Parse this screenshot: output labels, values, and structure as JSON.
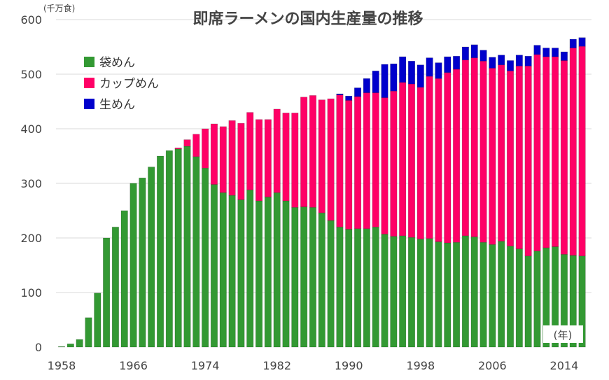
{
  "chart_data": {
    "type": "bar",
    "stacked": true,
    "title": "即席ラーメンの国内生産量の推移",
    "ylabel": "(千万食)",
    "xlabel": "(年)",
    "ylim": [
      0,
      600
    ],
    "yticks": [
      0,
      100,
      200,
      300,
      400,
      500,
      600
    ],
    "xticks": [
      1958,
      1966,
      1974,
      1982,
      1990,
      1998,
      2006,
      2014
    ],
    "grid": true,
    "legend_position": "top-left",
    "x_start": 1958,
    "x_end": 2016,
    "series": [
      {
        "name": "袋めん",
        "color": "#339933",
        "values": [
          1,
          6,
          14,
          54,
          99,
          200,
          220,
          250,
          300,
          310,
          330,
          350,
          360,
          363,
          368,
          349,
          328,
          298,
          283,
          278,
          270,
          288,
          268,
          275,
          283,
          268,
          256,
          257,
          256,
          246,
          232,
          220,
          216,
          217,
          217,
          220,
          207,
          203,
          204,
          201,
          198,
          199,
          193,
          191,
          192,
          204,
          202,
          192,
          188,
          194,
          185,
          180,
          167,
          176,
          182,
          184,
          170,
          168,
          167
        ]
      },
      {
        "name": "カップめん",
        "color": "#ff0066",
        "values": [
          0,
          0,
          0,
          0,
          0,
          0,
          0,
          0,
          0,
          0,
          0,
          0,
          0,
          2,
          12,
          41,
          72,
          111,
          121,
          137,
          140,
          142,
          149,
          142,
          153,
          161,
          173,
          201,
          205,
          207,
          223,
          242,
          236,
          242,
          249,
          246,
          250,
          266,
          281,
          281,
          278,
          297,
          299,
          312,
          317,
          322,
          328,
          332,
          323,
          323,
          321,
          335,
          348,
          360,
          350,
          348,
          355,
          380,
          384
        ]
      },
      {
        "name": "生めん",
        "color": "#0000cc",
        "values": [
          0,
          0,
          0,
          0,
          0,
          0,
          0,
          0,
          0,
          0,
          0,
          0,
          0,
          0,
          0,
          0,
          0,
          0,
          0,
          0,
          0,
          0,
          0,
          0,
          0,
          0,
          0,
          0,
          0,
          0,
          0,
          2,
          8,
          16,
          26,
          40,
          61,
          50,
          47,
          42,
          41,
          34,
          29,
          29,
          24,
          24,
          24,
          20,
          20,
          18,
          19,
          20,
          18,
          17,
          16,
          16,
          16,
          16,
          16
        ]
      }
    ]
  }
}
